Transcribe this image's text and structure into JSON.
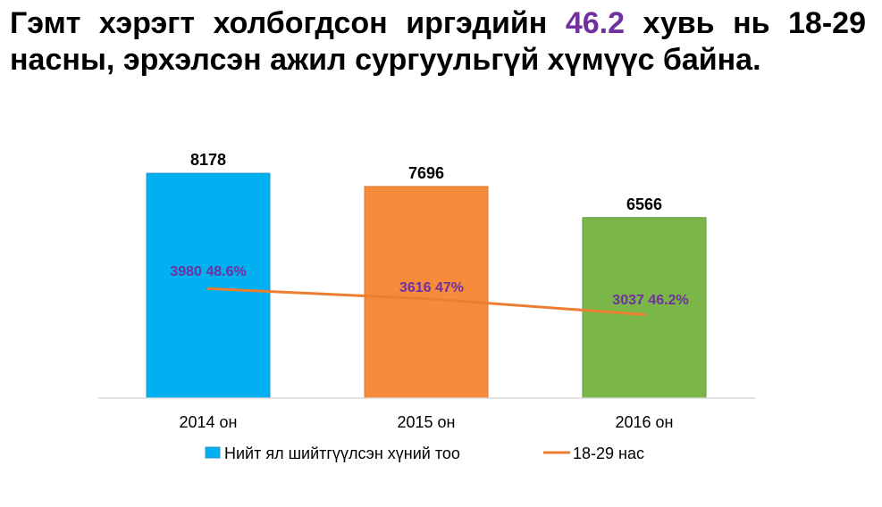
{
  "headline": {
    "before": "Гэмт хэрэгт холбогдсон иргэдийн ",
    "highlight": "46.2",
    "after": " хувь нь 18-29 насны, эрхэлсэн ажил сургуульгүй хүмүүс байна."
  },
  "colors": {
    "bar_2014": "#00B0F0",
    "bar_2015": "#F68B3C",
    "bar_2016": "#7AB648",
    "line": "#ED7D31",
    "line_label": "#7030A0",
    "highlight": "#7030A0",
    "axis": "#D9D9D9"
  },
  "chart_data": {
    "type": "bar",
    "categories": [
      "2014 он",
      "2015 он",
      "2016 он"
    ],
    "ylim": [
      0,
      9500
    ],
    "series": [
      {
        "name": "Нийт ял шийтгүүлсэн хүний тоо",
        "type": "bar",
        "values": [
          8178,
          7696,
          6566
        ],
        "data_labels": [
          "8178",
          "7696",
          "6566"
        ]
      },
      {
        "name": "18-29 нас",
        "type": "line",
        "values": [
          3980,
          3616,
          3037
        ],
        "percent": [
          "48.6%",
          "47%",
          "46.2%"
        ],
        "data_labels": [
          "3980 48.6%",
          "3616 47%",
          "3037 46.2%"
        ]
      }
    ],
    "legend": "bottom",
    "grid": false
  }
}
